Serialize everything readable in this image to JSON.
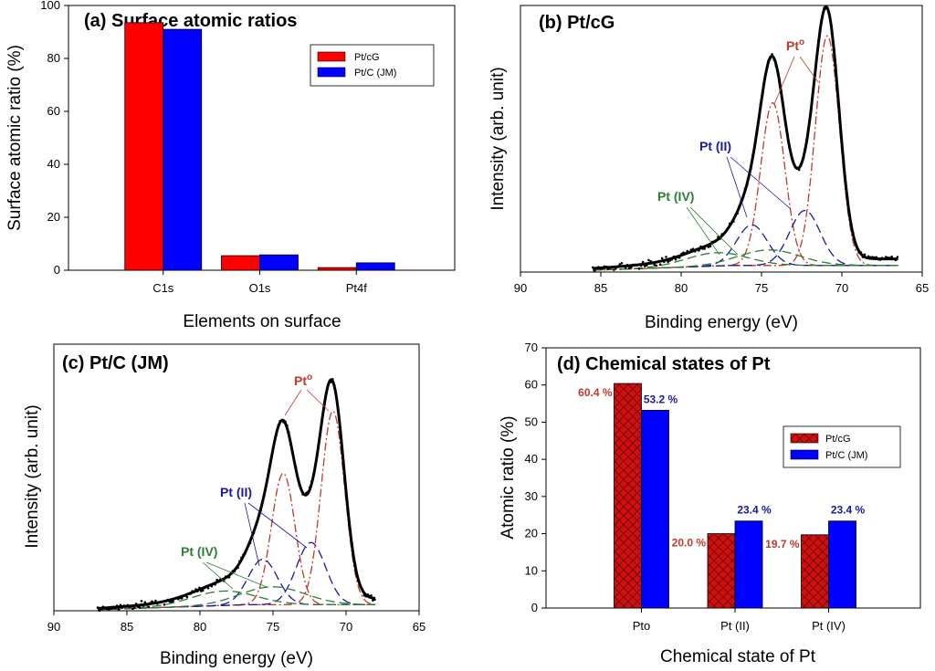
{
  "colors": {
    "ptcg": "#ff0000",
    "ptc": "#0000ff",
    "pt0": "#c0392b",
    "pt2": "#1a1a9a",
    "pt4": "#2e7d32",
    "hatch_bg": "#cc1111"
  },
  "chart_data": [
    {
      "panel": "a",
      "type": "bar",
      "title": "(a) Surface atomic ratios",
      "xlabel": "Elements on surface",
      "ylabel": "Surface atomic ratio (%)",
      "categories": [
        "C1s",
        "O1s",
        "Pt4f"
      ],
      "ylim": [
        0,
        100
      ],
      "yticks": [
        "0",
        "20",
        "40",
        "60",
        "80",
        "100"
      ],
      "series": [
        {
          "name": "Pt/cG",
          "values": [
            93.5,
            5.5,
            1.0
          ]
        },
        {
          "name": "Pt/C (JM)",
          "values": [
            91.0,
            5.8,
            2.8
          ]
        }
      ],
      "legend": "top-right"
    },
    {
      "panel": "b",
      "type": "line",
      "title": "(b) Pt/cG",
      "xlabel": "Binding energy (eV)",
      "ylabel": "Intensity (arb. unit)",
      "xlim": [
        90,
        65
      ],
      "xticks": [
        "90",
        "85",
        "80",
        "75",
        "70",
        "65"
      ],
      "data_range": [
        85.5,
        66.5
      ],
      "peaks": [
        {
          "state": "Pt0",
          "center": 70.9,
          "height": 0.96,
          "width": 0.75
        },
        {
          "state": "Pt0",
          "center": 74.3,
          "height": 0.68,
          "width": 0.75
        },
        {
          "state": "Pt(II)",
          "center": 72.3,
          "height": 0.23,
          "width": 0.95
        },
        {
          "state": "Pt(II)",
          "center": 75.6,
          "height": 0.17,
          "width": 0.95
        },
        {
          "state": "Pt(IV)",
          "center": 74.5,
          "height": 0.065,
          "width": 1.9
        },
        {
          "state": "Pt(IV)",
          "center": 77.8,
          "height": 0.055,
          "width": 1.9
        }
      ],
      "background": [
        0.015,
        0.04
      ],
      "annotations": {
        "pt0": "Pt",
        "pt0_sup": "o",
        "pt2": "Pt (II)",
        "pt4": "Pt (IV)"
      }
    },
    {
      "panel": "c",
      "type": "line",
      "title": "(c) Pt/C (JM)",
      "xlabel": "Binding energy (eV)",
      "ylabel": "Intensity (arb. unit)",
      "xlim": [
        90,
        65
      ],
      "xticks": [
        "90",
        "85",
        "80",
        "75",
        "70",
        "65"
      ],
      "data_range": [
        87,
        68
      ],
      "peaks": [
        {
          "state": "Pt0",
          "center": 70.9,
          "height": 0.81,
          "width": 0.8
        },
        {
          "state": "Pt0",
          "center": 74.3,
          "height": 0.55,
          "width": 0.8
        },
        {
          "state": "Pt(II)",
          "center": 72.4,
          "height": 0.26,
          "width": 1.0
        },
        {
          "state": "Pt(II)",
          "center": 75.7,
          "height": 0.19,
          "width": 1.0
        },
        {
          "state": "Pt(IV)",
          "center": 75.0,
          "height": 0.075,
          "width": 2.2
        },
        {
          "state": "Pt(IV)",
          "center": 78.4,
          "height": 0.06,
          "width": 2.2
        }
      ],
      "background": [
        0.01,
        0.04
      ],
      "annotations": {
        "pt0": "Pt",
        "pt0_sup": "o",
        "pt2": "Pt (II)",
        "pt4": "Pt (IV)"
      }
    },
    {
      "panel": "d",
      "type": "bar",
      "title": "(d) Chemical states of Pt",
      "xlabel": "Chemical state of Pt",
      "ylabel": "Atomic ratio (%)",
      "categories": [
        "Pto",
        "Pt (II)",
        "Pt (IV)"
      ],
      "ylim": [
        0,
        70
      ],
      "yticks": [
        "0",
        "10",
        "20",
        "30",
        "40",
        "50",
        "60",
        "70"
      ],
      "series": [
        {
          "name": "Pt/cG",
          "values": [
            60.4,
            20.0,
            19.7
          ],
          "labels": [
            "60.4 %",
            "20.0 %",
            "19.7 %"
          ]
        },
        {
          "name": "Pt/C (JM)",
          "values": [
            53.2,
            23.4,
            23.4
          ],
          "labels": [
            "53.2 %",
            "23.4 %",
            "23.4 %"
          ]
        }
      ],
      "legend": "right"
    }
  ]
}
